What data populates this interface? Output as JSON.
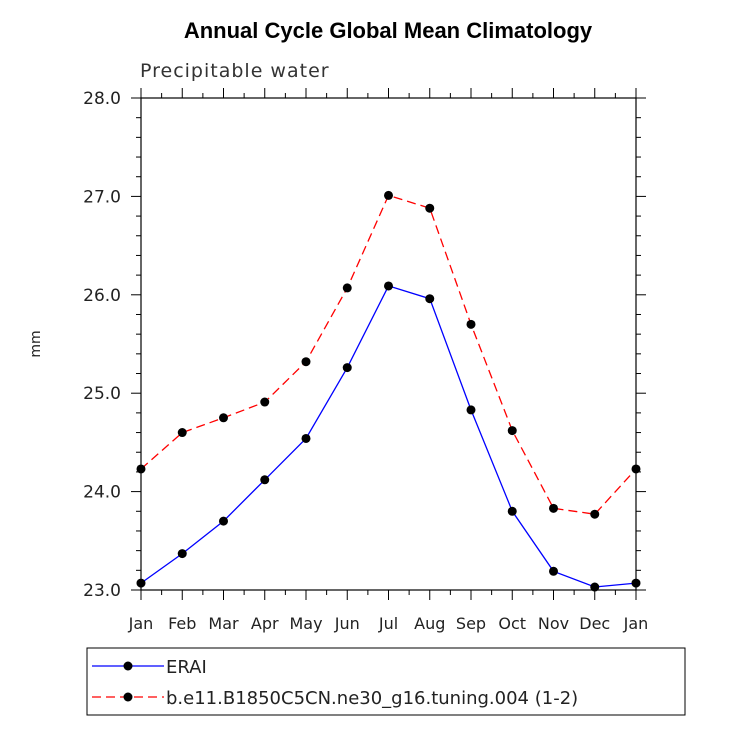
{
  "chart_data": {
    "type": "line",
    "title": "Annual Cycle Global Mean Climatology",
    "subtitle": "Precipitable water",
    "xlabel": "",
    "ylabel": "mm",
    "categories": [
      "Jan",
      "Feb",
      "Mar",
      "Apr",
      "May",
      "Jun",
      "Jul",
      "Aug",
      "Sep",
      "Oct",
      "Nov",
      "Dec",
      "Jan"
    ],
    "ylim": [
      23.0,
      28.0
    ],
    "yticks": [
      "23.0",
      "24.0",
      "25.0",
      "26.0",
      "27.0",
      "28.0"
    ],
    "series": [
      {
        "name": "ERAI",
        "color": "#0000ff",
        "dash": "solid",
        "values": [
          23.07,
          23.37,
          23.7,
          24.12,
          24.54,
          25.26,
          26.09,
          25.96,
          24.83,
          23.8,
          23.19,
          23.03,
          23.07
        ]
      },
      {
        "name": "b.e11.B1850C5CN.ne30_g16.tuning.004 (1-2)",
        "color": "#ff0000",
        "dash": "dashed",
        "values": [
          24.23,
          24.6,
          24.75,
          24.91,
          25.32,
          26.07,
          27.01,
          26.88,
          25.7,
          24.62,
          23.83,
          23.77,
          24.23
        ]
      }
    ]
  }
}
